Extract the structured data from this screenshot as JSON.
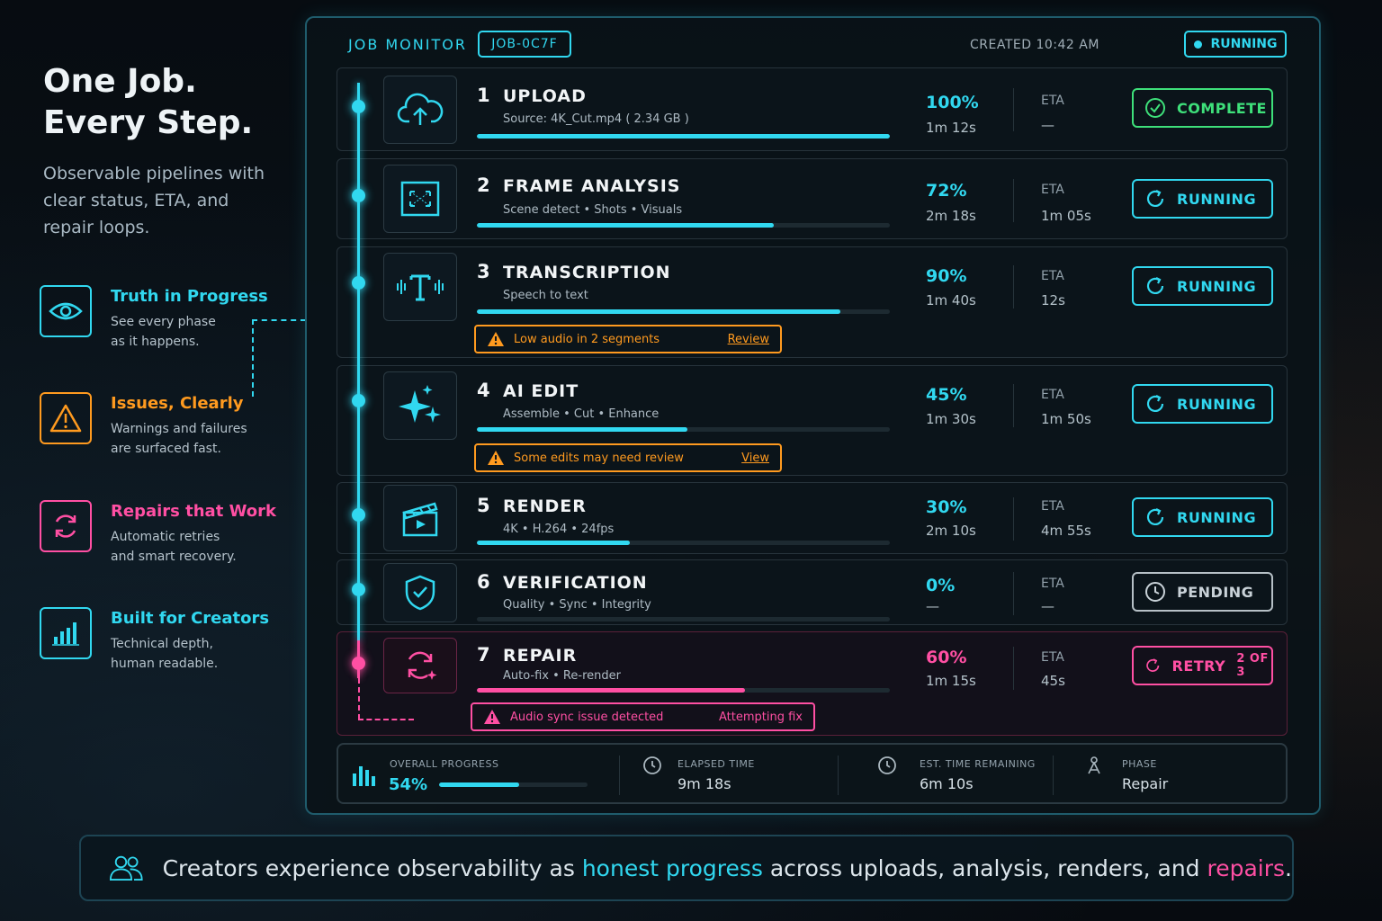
{
  "left": {
    "hero_line1": "One Job.",
    "hero_line2": "Every Step.",
    "subtitle": "Observable pipelines with clear status, ETA, and repair loops.",
    "features": [
      {
        "title": "Truth in Progress",
        "desc": "See every phase\nas it happens.",
        "icon": "eye-icon",
        "color": "#31d8f0"
      },
      {
        "title": "Issues, Clearly",
        "desc": "Warnings and failures\nare surfaced fast.",
        "icon": "warning-icon",
        "color": "#ff9a1f"
      },
      {
        "title": "Repairs that Work",
        "desc": "Automatic retries\nand smart recovery.",
        "icon": "retry-icon",
        "color": "#ff4fa3"
      },
      {
        "title": "Built for Creators",
        "desc": "Technical depth,\nhuman readable.",
        "icon": "chart-icon",
        "color": "#31d8f0"
      }
    ]
  },
  "header": {
    "title": "JOB MONITOR",
    "job_id": "JOB-0C7F",
    "created": "CREATED 10:42 AM",
    "status": "RUNNING"
  },
  "steps": [
    {
      "num": "1",
      "name": "UPLOAD",
      "desc": "Source: 4K_Cut.mp4  ( 2.34 GB )",
      "progress": 100,
      "pct": "100%",
      "elapsed": "1m 12s",
      "eta_label": "ETA",
      "eta": "—",
      "status": "COMPLETE",
      "icon": "cloud-upload-icon"
    },
    {
      "num": "2",
      "name": "FRAME ANALYSIS",
      "desc": "Scene detect  •  Shots  •  Visuals",
      "progress": 72,
      "pct": "72%",
      "elapsed": "2m 18s",
      "eta_label": "ETA",
      "eta": "1m 05s",
      "status": "RUNNING",
      "icon": "frame-icon"
    },
    {
      "num": "3",
      "name": "TRANSCRIPTION",
      "desc": "Speech to text",
      "progress": 90,
      "pct": "90%",
      "elapsed": "1m 40s",
      "eta_label": "ETA",
      "eta": "12s",
      "status": "RUNNING",
      "icon": "text-waveform-icon",
      "warning": {
        "text": "Low audio in 2 segments",
        "action": "Review"
      }
    },
    {
      "num": "4",
      "name": "AI EDIT",
      "desc": "Assemble  •  Cut  •  Enhance",
      "progress": 45,
      "pct": "45%",
      "elapsed": "1m 30s",
      "eta_label": "ETA",
      "eta": "1m 50s",
      "status": "RUNNING",
      "icon": "sparkle-icon",
      "warning": {
        "text": "Some edits may need review",
        "action": "View"
      }
    },
    {
      "num": "5",
      "name": "RENDER",
      "desc": "4K  •  H.264  •  24fps",
      "progress": 30,
      "pct": "30%",
      "elapsed": "2m 10s",
      "eta_label": "ETA",
      "eta": "4m 55s",
      "status": "RUNNING",
      "icon": "clapperboard-icon"
    },
    {
      "num": "6",
      "name": "VERIFICATION",
      "desc": "Quality  •  Sync  •  Integrity",
      "progress": 0,
      "pct": "0%",
      "elapsed": "—",
      "eta_label": "ETA",
      "eta": "—",
      "status": "PENDING",
      "icon": "shield-check-icon"
    },
    {
      "num": "7",
      "name": "REPAIR",
      "desc": "Auto-fix  •  Re-render",
      "progress": 60,
      "pct": "60%",
      "elapsed": "1m 15s",
      "eta_label": "ETA",
      "eta": "45s",
      "status": "RETRY",
      "status_extra": "2 OF 3",
      "icon": "repair-icon",
      "warning": {
        "text": "Audio sync issue detected",
        "action": "Attempting fix"
      }
    }
  ],
  "summary": {
    "overall_label": "OVERALL PROGRESS",
    "overall_value": "54%",
    "overall_progress": 54,
    "elapsed_label": "ELAPSED TIME",
    "elapsed_value": "9m 18s",
    "remaining_label": "EST. TIME REMAINING",
    "remaining_value": "6m 10s",
    "phase_label": "PHASE",
    "phase_value": "Repair"
  },
  "footer": {
    "part1": "Creators experience observability as ",
    "highlight1": "honest progress",
    "part2": " across uploads, analysis, renders, and ",
    "highlight2": "repairs",
    "part3": "."
  },
  "colors": {
    "cyan": "#31d8f0",
    "green": "#3ee07a",
    "orange": "#ff9a1f",
    "pink": "#ff4fa3",
    "gray": "#c9d2d8"
  }
}
